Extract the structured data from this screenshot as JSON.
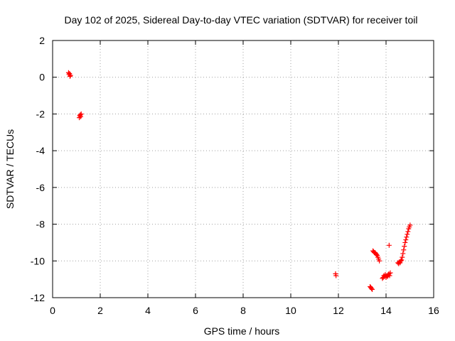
{
  "chart_data": {
    "type": "scatter",
    "title": "Day 102 of 2025, Sidereal Day-to-day VTEC variation (SDTVAR) for receiver toil",
    "xlabel": "GPS time / hours",
    "ylabel": "SDTVAR / TECUs",
    "xlim": [
      0,
      16
    ],
    "ylim": [
      -12,
      2
    ],
    "xticks": [
      0,
      2,
      4,
      6,
      8,
      10,
      12,
      14,
      16
    ],
    "yticks": [
      -12,
      -10,
      -8,
      -6,
      -4,
      -2,
      0,
      2
    ],
    "xtick_labels": [
      "0",
      "2",
      "4",
      "6",
      "8",
      "10",
      "12",
      "14",
      "16"
    ],
    "ytick_labels": [
      "-12",
      "-10",
      "-8",
      "-6",
      "-4",
      "-2",
      "0",
      "2"
    ],
    "grid": true,
    "marker": "plus",
    "color": "#ff0000",
    "series": [
      {
        "x": [
          0.67,
          0.69,
          0.71,
          0.73,
          0.75,
          1.12,
          1.14,
          1.16,
          1.18,
          1.2,
          11.88,
          11.9,
          13.33,
          13.36,
          13.39,
          13.42,
          13.45,
          13.48,
          13.51,
          13.54,
          13.57,
          13.6,
          13.63,
          13.66,
          13.69,
          13.72,
          13.85,
          13.88,
          13.91,
          13.94,
          13.97,
          14.0,
          14.03,
          14.06,
          14.09,
          14.12,
          14.15,
          14.18,
          14.13,
          14.5,
          14.53,
          14.56,
          14.59,
          14.62,
          14.65,
          14.68,
          14.71,
          14.74,
          14.77,
          14.8,
          14.83,
          14.86,
          14.89,
          14.92,
          14.95,
          14.98,
          15.01
        ],
        "y": [
          0.25,
          0.15,
          0.2,
          0.05,
          0.1,
          -2.2,
          -2.1,
          -2.05,
          -2.15,
          -2.0,
          -10.7,
          -10.8,
          -11.4,
          -11.45,
          -11.5,
          -11.55,
          -9.45,
          -9.5,
          -9.55,
          -9.55,
          -9.6,
          -9.65,
          -9.7,
          -9.8,
          -9.9,
          -10.0,
          -10.95,
          -10.9,
          -10.8,
          -10.85,
          -10.75,
          -10.9,
          -10.8,
          -10.85,
          -10.75,
          -10.7,
          -10.8,
          -10.65,
          -9.15,
          -10.1,
          -10.15,
          -10.05,
          -10.1,
          -10.0,
          -9.95,
          -9.8,
          -9.6,
          -9.4,
          -9.2,
          -9.0,
          -8.85,
          -8.7,
          -8.55,
          -8.4,
          -8.25,
          -8.15,
          -8.05
        ]
      }
    ]
  }
}
